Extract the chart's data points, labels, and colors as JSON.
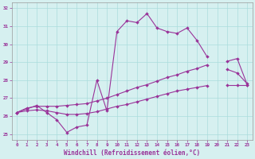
{
  "x": [
    0,
    1,
    2,
    3,
    4,
    5,
    6,
    7,
    8,
    9,
    10,
    11,
    12,
    13,
    14,
    15,
    16,
    17,
    18,
    19,
    20,
    21,
    22,
    23
  ],
  "main_y": [
    26.2,
    26.4,
    26.6,
    26.2,
    25.8,
    25.1,
    25.4,
    25.5,
    28.0,
    26.3,
    30.7,
    31.3,
    31.2,
    31.7,
    30.9,
    30.7,
    30.6,
    30.9,
    30.2,
    29.3,
    null,
    28.6,
    28.4,
    27.8
  ],
  "upper_y": [
    26.2,
    26.45,
    26.55,
    26.55,
    26.55,
    26.6,
    26.65,
    26.7,
    26.85,
    27.0,
    27.2,
    27.4,
    27.6,
    27.75,
    27.95,
    28.15,
    28.3,
    28.5,
    28.65,
    28.85,
    null,
    29.05,
    29.2,
    27.75
  ],
  "lower_y": [
    26.2,
    26.3,
    26.35,
    26.3,
    26.2,
    26.1,
    26.1,
    26.15,
    26.25,
    26.4,
    26.55,
    26.65,
    26.8,
    26.95,
    27.1,
    27.25,
    27.4,
    27.5,
    27.6,
    27.7,
    null,
    27.75,
    27.75,
    27.75
  ],
  "line_color": "#993399",
  "bg_color": "#d6f0f0",
  "grid_color": "#aadddd",
  "ylim": [
    24.7,
    32.3
  ],
  "xlim": [
    -0.5,
    23.5
  ],
  "yticks": [
    25,
    26,
    27,
    28,
    29,
    30,
    31,
    32
  ],
  "xticks": [
    0,
    1,
    2,
    3,
    4,
    5,
    6,
    7,
    8,
    9,
    10,
    11,
    12,
    13,
    14,
    15,
    16,
    17,
    18,
    19,
    20,
    21,
    22,
    23
  ],
  "xlabel": "Windchill (Refroidissement éolien,°C)",
  "title": ""
}
